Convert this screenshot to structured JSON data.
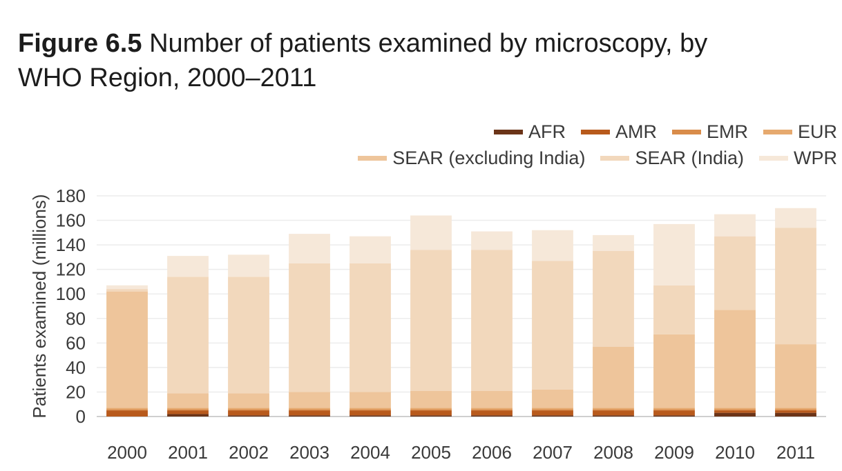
{
  "figure_label": "Figure 6.5",
  "figure_title": "Number of patients examined by microscopy, by WHO Region, 2000–2011",
  "chart_data": {
    "type": "bar",
    "stacked": true,
    "ylabel": "Patients examined (millions)",
    "xlabel": "",
    "ylim": [
      0,
      180
    ],
    "yticks": [
      0,
      20,
      40,
      60,
      80,
      100,
      120,
      140,
      160,
      180
    ],
    "grid": true,
    "legend_position": "top-right",
    "categories": [
      "2000",
      "2001",
      "2002",
      "2003",
      "2004",
      "2005",
      "2006",
      "2007",
      "2008",
      "2009",
      "2010",
      "2011"
    ],
    "series": [
      {
        "name": "AFR",
        "color": "#6b3418",
        "values": [
          0,
          2,
          1,
          1,
          1,
          1,
          1,
          1,
          1,
          1,
          3,
          3
        ]
      },
      {
        "name": "AMR",
        "color": "#b85a1c",
        "values": [
          5,
          3,
          4,
          4,
          4,
          4,
          4,
          4,
          4,
          4,
          2,
          2
        ]
      },
      {
        "name": "EMR",
        "color": "#d98c4a",
        "values": [
          1,
          1,
          1,
          1,
          1,
          1,
          1,
          1,
          1,
          1,
          1,
          1
        ]
      },
      {
        "name": "EUR",
        "color": "#e6a96e",
        "values": [
          1,
          1,
          1,
          1,
          1,
          1,
          1,
          1,
          1,
          1,
          1,
          1
        ]
      },
      {
        "name": "SEAR (excluding India)",
        "color": "#eec59b",
        "values": [
          95,
          12,
          12,
          13,
          13,
          14,
          14,
          15,
          50,
          60,
          80,
          52
        ]
      },
      {
        "name": "SEAR (India)",
        "color": "#f2d8bc",
        "values": [
          2,
          95,
          95,
          105,
          105,
          115,
          115,
          105,
          78,
          40,
          60,
          95
        ]
      },
      {
        "name": "WPR",
        "color": "#f6e8d9",
        "values": [
          3,
          17,
          18,
          24,
          22,
          28,
          15,
          25,
          13,
          50,
          18,
          16
        ]
      }
    ]
  }
}
